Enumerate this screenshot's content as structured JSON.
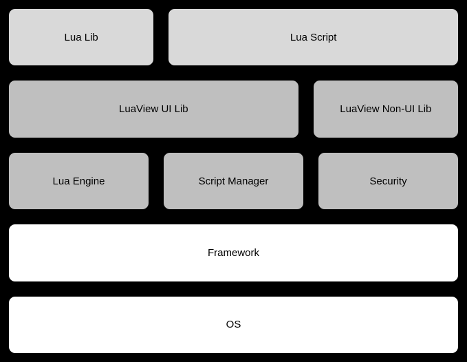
{
  "diagram": {
    "type": "layered-architecture",
    "background_color": "#000000",
    "box_border_color": "#000000",
    "box_border_radius": 10,
    "font_size": 15,
    "colors": {
      "light": "#d9d9d9",
      "medium": "#bfbfbf",
      "white": "#ffffff"
    },
    "rows": [
      {
        "boxes": [
          {
            "label": "Lua Lib",
            "color": "light",
            "flex": 1
          },
          {
            "label": "Lua Script",
            "color": "light",
            "flex": 2
          }
        ]
      },
      {
        "boxes": [
          {
            "label": "LuaView UI Lib",
            "color": "medium",
            "flex": 2
          },
          {
            "label": "LuaView Non-UI Lib",
            "color": "medium",
            "flex": 1
          }
        ]
      },
      {
        "boxes": [
          {
            "label": "Lua Engine",
            "color": "medium",
            "flex": 1
          },
          {
            "label": "Script Manager",
            "color": "medium",
            "flex": 1
          },
          {
            "label": "Security",
            "color": "medium",
            "flex": 1
          }
        ]
      },
      {
        "boxes": [
          {
            "label": "Framework",
            "color": "white",
            "flex": 1
          }
        ]
      },
      {
        "boxes": [
          {
            "label": "OS",
            "color": "white",
            "flex": 1
          }
        ]
      }
    ]
  }
}
